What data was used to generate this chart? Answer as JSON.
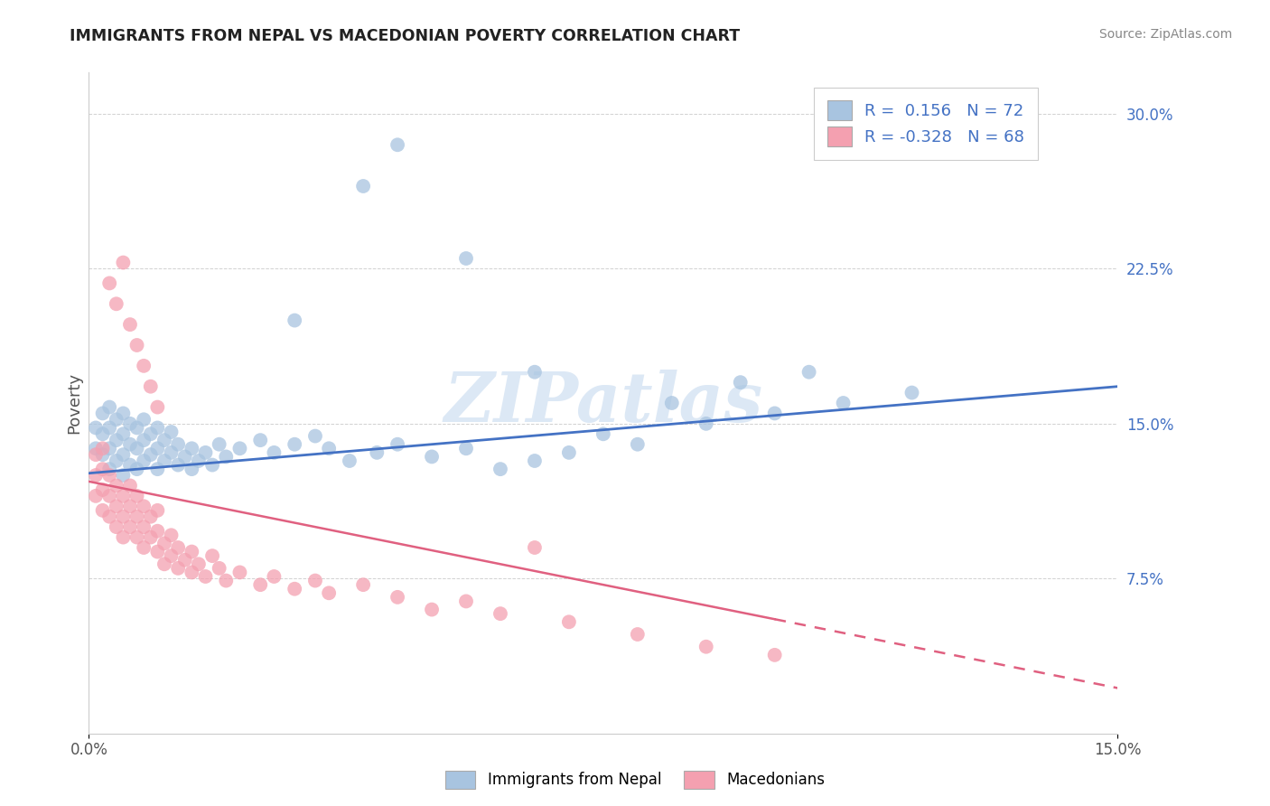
{
  "title": "IMMIGRANTS FROM NEPAL VS MACEDONIAN POVERTY CORRELATION CHART",
  "source": "Source: ZipAtlas.com",
  "ylabel": "Poverty",
  "xlim": [
    0.0,
    0.15
  ],
  "ylim": [
    0.0,
    0.32
  ],
  "x_ticks": [
    0.0,
    0.15
  ],
  "x_tick_labels": [
    "0.0%",
    "15.0%"
  ],
  "y_ticks": [
    0.075,
    0.15,
    0.225,
    0.3
  ],
  "y_tick_labels": [
    "7.5%",
    "15.0%",
    "22.5%",
    "30.0%"
  ],
  "legend_R1": "0.156",
  "legend_N1": "72",
  "legend_R2": "-0.328",
  "legend_N2": "68",
  "blue_color": "#a8c4e0",
  "pink_color": "#f4a0b0",
  "blue_line_color": "#4472c4",
  "pink_line_color": "#e06080",
  "watermark": "ZIPatlas",
  "watermark_color": "#dce8f5",
  "blue_line_x0": 0.0,
  "blue_line_y0": 0.126,
  "blue_line_x1": 0.15,
  "blue_line_y1": 0.168,
  "pink_line_x0": 0.0,
  "pink_line_y0": 0.122,
  "pink_line_x1": 0.15,
  "pink_line_y1": 0.022,
  "blue_scatter_x": [
    0.001,
    0.001,
    0.002,
    0.002,
    0.002,
    0.003,
    0.003,
    0.003,
    0.003,
    0.004,
    0.004,
    0.004,
    0.005,
    0.005,
    0.005,
    0.005,
    0.006,
    0.006,
    0.006,
    0.007,
    0.007,
    0.007,
    0.008,
    0.008,
    0.008,
    0.009,
    0.009,
    0.01,
    0.01,
    0.01,
    0.011,
    0.011,
    0.012,
    0.012,
    0.013,
    0.013,
    0.014,
    0.015,
    0.015,
    0.016,
    0.017,
    0.018,
    0.019,
    0.02,
    0.022,
    0.025,
    0.027,
    0.03,
    0.033,
    0.035,
    0.038,
    0.042,
    0.045,
    0.05,
    0.055,
    0.06,
    0.065,
    0.07,
    0.08,
    0.09,
    0.1,
    0.11,
    0.12,
    0.03,
    0.04,
    0.045,
    0.055,
    0.065,
    0.075,
    0.085,
    0.095,
    0.105
  ],
  "blue_scatter_y": [
    0.138,
    0.148,
    0.135,
    0.145,
    0.155,
    0.128,
    0.138,
    0.148,
    0.158,
    0.132,
    0.142,
    0.152,
    0.125,
    0.135,
    0.145,
    0.155,
    0.13,
    0.14,
    0.15,
    0.128,
    0.138,
    0.148,
    0.132,
    0.142,
    0.152,
    0.135,
    0.145,
    0.128,
    0.138,
    0.148,
    0.132,
    0.142,
    0.136,
    0.146,
    0.13,
    0.14,
    0.134,
    0.128,
    0.138,
    0.132,
    0.136,
    0.13,
    0.14,
    0.134,
    0.138,
    0.142,
    0.136,
    0.14,
    0.144,
    0.138,
    0.132,
    0.136,
    0.14,
    0.134,
    0.138,
    0.128,
    0.132,
    0.136,
    0.14,
    0.15,
    0.155,
    0.16,
    0.165,
    0.2,
    0.265,
    0.285,
    0.23,
    0.175,
    0.145,
    0.16,
    0.17,
    0.175
  ],
  "pink_scatter_x": [
    0.001,
    0.001,
    0.001,
    0.002,
    0.002,
    0.002,
    0.002,
    0.003,
    0.003,
    0.003,
    0.004,
    0.004,
    0.004,
    0.005,
    0.005,
    0.005,
    0.006,
    0.006,
    0.006,
    0.007,
    0.007,
    0.007,
    0.008,
    0.008,
    0.008,
    0.009,
    0.009,
    0.01,
    0.01,
    0.01,
    0.011,
    0.011,
    0.012,
    0.012,
    0.013,
    0.013,
    0.014,
    0.015,
    0.015,
    0.016,
    0.017,
    0.018,
    0.019,
    0.02,
    0.022,
    0.025,
    0.027,
    0.03,
    0.033,
    0.035,
    0.04,
    0.045,
    0.05,
    0.055,
    0.06,
    0.065,
    0.07,
    0.08,
    0.09,
    0.1,
    0.003,
    0.004,
    0.005,
    0.006,
    0.007,
    0.008,
    0.009,
    0.01
  ],
  "pink_scatter_y": [
    0.115,
    0.125,
    0.135,
    0.108,
    0.118,
    0.128,
    0.138,
    0.105,
    0.115,
    0.125,
    0.1,
    0.11,
    0.12,
    0.095,
    0.105,
    0.115,
    0.1,
    0.11,
    0.12,
    0.095,
    0.105,
    0.115,
    0.09,
    0.1,
    0.11,
    0.095,
    0.105,
    0.088,
    0.098,
    0.108,
    0.082,
    0.092,
    0.086,
    0.096,
    0.08,
    0.09,
    0.084,
    0.078,
    0.088,
    0.082,
    0.076,
    0.086,
    0.08,
    0.074,
    0.078,
    0.072,
    0.076,
    0.07,
    0.074,
    0.068,
    0.072,
    0.066,
    0.06,
    0.064,
    0.058,
    0.09,
    0.054,
    0.048,
    0.042,
    0.038,
    0.218,
    0.208,
    0.228,
    0.198,
    0.188,
    0.178,
    0.168,
    0.158
  ]
}
